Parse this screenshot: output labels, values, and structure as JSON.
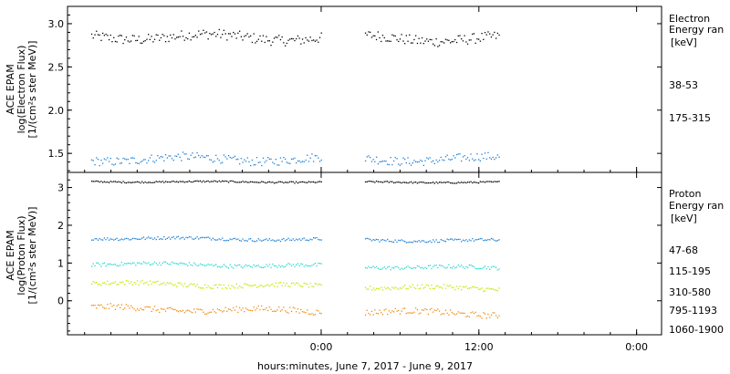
{
  "xlabel": "hours:minutes, June  7, 2017 - June  9, 2017",
  "chart_data": [
    {
      "type": "scatter",
      "ylabel_lines": [
        "ACE EPAM",
        "log(Electron Flux)",
        "[1/(cm²s ster MeV)]"
      ],
      "legend_title_lines": [
        "Electron",
        "Energy ran"
      ],
      "legend_unit": "[keV]",
      "ylim": [
        1.28,
        3.2
      ],
      "yticks": [
        "1.5",
        "2.0",
        "2.5",
        "3.0"
      ],
      "ytick_values": [
        1.5,
        2.0,
        2.5,
        3.0
      ],
      "xticks": [
        "0:00",
        "12:00",
        "0:00"
      ],
      "xtick_hours": [
        0,
        12,
        24
      ],
      "xlim_hours": [
        -19.3,
        25.9
      ],
      "gap_hours": [
        0.05,
        3.3
      ],
      "data_start_hour": -17.5,
      "data_end_hour": 13.5,
      "series": [
        {
          "name": "38-53",
          "color": "#000000",
          "mean": 2.86,
          "spread": 0.06,
          "trend": -0.03
        },
        {
          "name": "175-315",
          "color": "#1c7fd6",
          "mean": 1.44,
          "spread": 0.05,
          "trend": 0.0
        }
      ]
    },
    {
      "type": "scatter",
      "ylabel_lines": [
        "ACE EPAM",
        "log(Proton Flux)",
        "[1/(cm²s ster MeV)]"
      ],
      "legend_title_lines": [
        "Proton",
        "Energy ran"
      ],
      "legend_unit": "[keV]",
      "ylim": [
        -0.9,
        3.4
      ],
      "yticks": [
        "0",
        "1",
        "2",
        "3"
      ],
      "ytick_values": [
        0,
        1,
        2,
        3
      ],
      "xticks": [
        "0:00",
        "12:00",
        "0:00"
      ],
      "xtick_hours": [
        0,
        12,
        24
      ],
      "xlim_hours": [
        -19.3,
        25.9
      ],
      "gap_hours": [
        0.05,
        3.3
      ],
      "data_start_hour": -17.5,
      "data_end_hour": 13.5,
      "series": [
        {
          "name": "47-68",
          "color": "#000000",
          "mean": 3.17,
          "spread": 0.02,
          "trend": -0.02
        },
        {
          "name": "115-195",
          "color": "#1c7fd6",
          "mean": 1.68,
          "spread": 0.04,
          "trend": -0.08
        },
        {
          "name": "310-580",
          "color": "#27d8cf",
          "mean": 1.0,
          "spread": 0.05,
          "trend": -0.12
        },
        {
          "name": "795-1193",
          "color": "#c8e400",
          "mean": 0.48,
          "spread": 0.06,
          "trend": -0.15
        },
        {
          "name": "1060-1900",
          "color": "#f08a10",
          "mean": -0.18,
          "spread": 0.08,
          "trend": -0.15
        }
      ]
    }
  ]
}
